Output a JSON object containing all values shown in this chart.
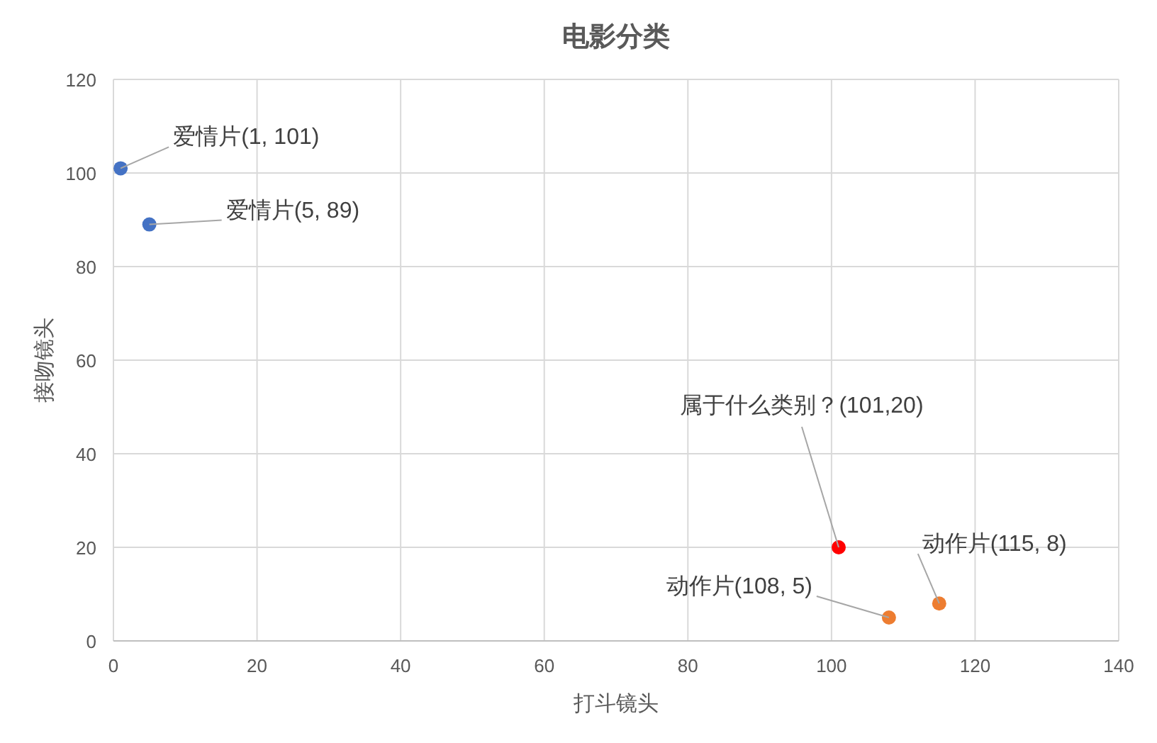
{
  "chart_data": {
    "type": "scatter",
    "title": "电影分类",
    "xlabel": "打斗镜头",
    "ylabel": "接吻镜头",
    "xlim": [
      0,
      140
    ],
    "ylim": [
      0,
      120
    ],
    "xticks": [
      0,
      20,
      40,
      60,
      80,
      100,
      120,
      140
    ],
    "yticks": [
      0,
      20,
      40,
      60,
      80,
      100,
      120
    ],
    "grid": true,
    "marker": "circle",
    "series": [
      {
        "color": "#4472c4",
        "x": [
          1,
          5
        ],
        "values": [
          101,
          89
        ]
      },
      {
        "color": "#ff0000",
        "x": [
          101
        ],
        "values": [
          20
        ]
      },
      {
        "color": "#ed7d31",
        "x": [
          108,
          115
        ],
        "values": [
          5,
          8
        ]
      }
    ],
    "annotations": [
      {
        "text": "爱情片(1, 101)",
        "x": 1,
        "y": 101
      },
      {
        "text": "爱情片(5, 89)",
        "x": 5,
        "y": 89
      },
      {
        "text": "属于什么类别？(101,20)",
        "x": 101,
        "y": 20
      },
      {
        "text": "动作片(108, 5)",
        "x": 108,
        "y": 5
      },
      {
        "text": "动作片(115, 8)",
        "x": 115,
        "y": 8
      }
    ]
  }
}
